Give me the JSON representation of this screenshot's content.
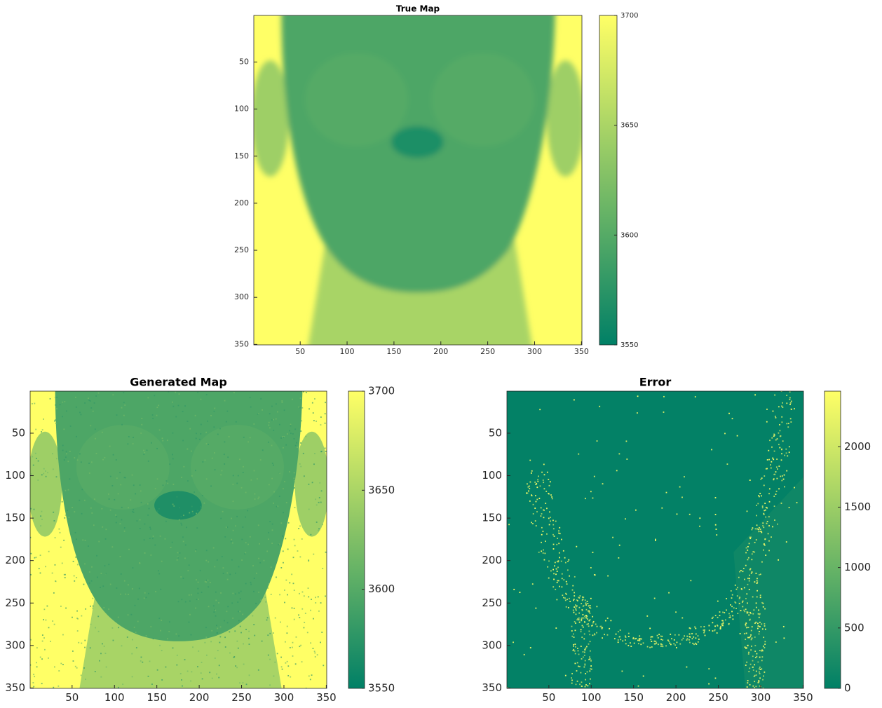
{
  "chart_data": [
    {
      "type": "heatmap",
      "title": "True Map",
      "colormap": "summer",
      "xlim": [
        0.5,
        350.5
      ],
      "ylim": [
        0.5,
        350.5
      ],
      "xticks": [
        50,
        100,
        150,
        200,
        250,
        300,
        350
      ],
      "yticks": [
        50,
        100,
        150,
        200,
        250,
        300,
        350
      ],
      "clim": [
        3550,
        3700
      ],
      "cticks": [
        3550,
        3600,
        3650,
        3700
      ]
    },
    {
      "type": "heatmap",
      "title": "Generated Map",
      "colormap": "summer",
      "xlim": [
        0.5,
        350.5
      ],
      "ylim": [
        0.5,
        350.5
      ],
      "xticks": [
        50,
        100,
        150,
        200,
        250,
        300,
        350
      ],
      "yticks": [
        50,
        100,
        150,
        200,
        250,
        300,
        350
      ],
      "clim": [
        3550,
        3700
      ],
      "cticks": [
        3550,
        3600,
        3650,
        3700
      ]
    },
    {
      "type": "heatmap",
      "title": "Error",
      "colormap": "summer",
      "xlim": [
        0.5,
        350.5
      ],
      "ylim": [
        0.5,
        350.5
      ],
      "xticks": [
        50,
        100,
        150,
        200,
        250,
        300,
        350
      ],
      "yticks": [
        50,
        100,
        150,
        200,
        250,
        300,
        350
      ],
      "clim": [
        0,
        2460
      ],
      "cticks": [
        0,
        500,
        1000,
        1500,
        2000
      ]
    }
  ]
}
